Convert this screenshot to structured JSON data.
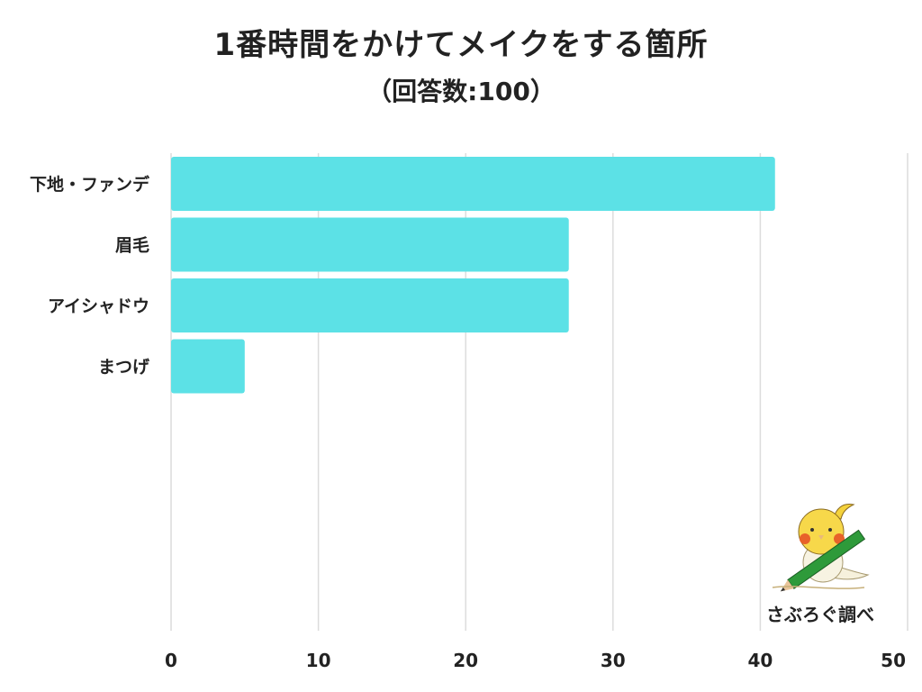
{
  "header": {
    "title": "1番時間をかけてメイクをする箇所",
    "subtitle": "（回答数:100）"
  },
  "credit": {
    "text": "さぶろぐ調べ",
    "mascot_icon": "cockatiel-with-pencil"
  },
  "colors": {
    "bar": "#5ce1e6",
    "grid": "#dcdcdc",
    "text": "#222222"
  },
  "chart_data": {
    "type": "bar",
    "orientation": "horizontal",
    "title": "1番時間をかけてメイクをする箇所",
    "subtitle": "（回答数:100）",
    "categories": [
      "下地・ファンデ",
      "眉毛",
      "アイシャドウ",
      "まつげ"
    ],
    "values": [
      41,
      27,
      27,
      5
    ],
    "xlim": [
      0,
      50
    ],
    "xticks": [
      0,
      10,
      20,
      30,
      40,
      50
    ],
    "xlabel": "",
    "ylabel": "",
    "grid": true,
    "legend": "none"
  }
}
